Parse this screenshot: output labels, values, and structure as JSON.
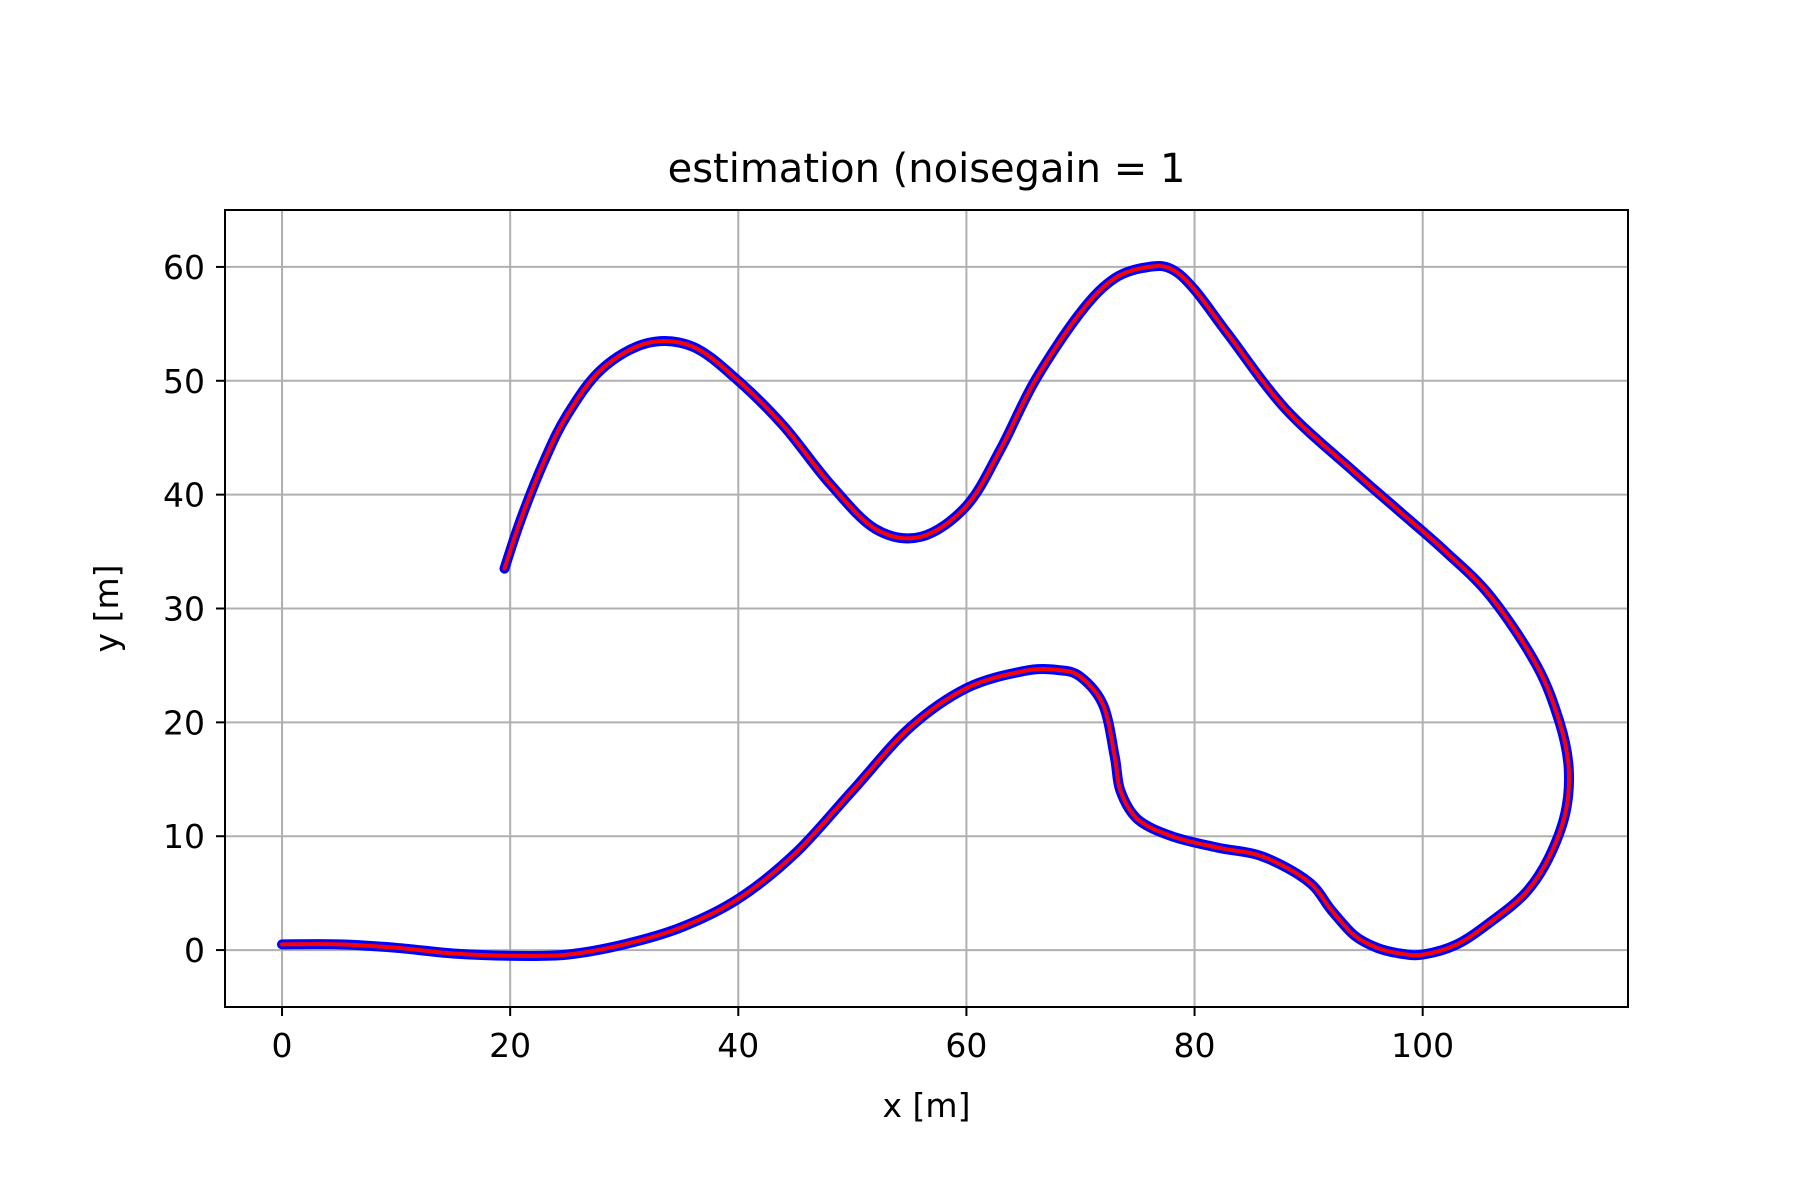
{
  "chart_data": {
    "type": "line",
    "title": "estimation (noisegain = 1",
    "xlabel": "x [m]",
    "ylabel": "y [m]",
    "xlim": [
      -5,
      118
    ],
    "ylim": [
      -5,
      65
    ],
    "xticks": [
      0,
      20,
      40,
      60,
      80,
      100
    ],
    "yticks": [
      0,
      10,
      20,
      30,
      40,
      50,
      60
    ],
    "xtick_labels": [
      "0",
      "20",
      "40",
      "60",
      "80",
      "100"
    ],
    "ytick_labels": [
      "0",
      "10",
      "20",
      "30",
      "40",
      "50",
      "60"
    ],
    "grid": true,
    "legend": "none",
    "series": [
      {
        "color": "#0000ff",
        "style": "noisy points",
        "x": [
          0,
          5,
          10,
          15,
          20,
          25,
          30,
          35,
          40,
          45,
          50,
          55,
          60,
          65,
          68,
          70,
          72,
          73,
          73.5,
          75,
          78,
          82,
          86,
          90,
          92,
          94,
          96,
          98,
          100,
          103,
          106,
          109,
          111,
          112.5,
          112.8,
          112,
          110,
          106,
          102,
          98,
          94,
          88,
          83,
          80,
          78,
          76,
          73,
          70,
          66,
          63,
          60,
          56,
          52,
          48,
          44,
          40,
          36,
          32,
          28,
          25,
          23,
          21,
          19.5
        ],
        "y": [
          0.5,
          0.5,
          0.2,
          -0.3,
          -0.5,
          -0.4,
          0.5,
          2,
          4.5,
          8.5,
          14,
          19.5,
          23,
          24.5,
          24.6,
          24,
          21.5,
          17,
          14,
          11.5,
          10,
          9,
          8.2,
          6,
          3.5,
          1.3,
          0.2,
          -0.3,
          -0.4,
          0.5,
          2.5,
          5,
          8,
          12,
          16,
          20,
          25,
          31,
          35,
          38.5,
          42,
          47.5,
          54,
          58,
          59.8,
          60,
          59,
          56,
          50,
          44,
          39,
          36.3,
          37,
          41,
          46,
          50,
          53,
          53.3,
          51,
          47,
          43,
          38,
          33.5
        ]
      },
      {
        "color": "#ff0000",
        "style": "line",
        "x": [
          0,
          5,
          10,
          15,
          20,
          25,
          30,
          35,
          40,
          45,
          50,
          55,
          60,
          65,
          68,
          70,
          72,
          73,
          73.5,
          75,
          78,
          82,
          86,
          90,
          92,
          94,
          96,
          98,
          100,
          103,
          106,
          109,
          111,
          112.5,
          112.8,
          112,
          110,
          106,
          102,
          98,
          94,
          88,
          83,
          80,
          78,
          76,
          73,
          70,
          66,
          63,
          60,
          56,
          52,
          48,
          44,
          40,
          36,
          32,
          28,
          25,
          23,
          21,
          19.5
        ],
        "y": [
          0.5,
          0.5,
          0.2,
          -0.3,
          -0.5,
          -0.4,
          0.5,
          2,
          4.5,
          8.5,
          14,
          19.5,
          23,
          24.5,
          24.6,
          24,
          21.5,
          17,
          14,
          11.5,
          10,
          9,
          8.2,
          6,
          3.5,
          1.3,
          0.2,
          -0.3,
          -0.4,
          0.5,
          2.5,
          5,
          8,
          12,
          16,
          20,
          25,
          31,
          35,
          38.5,
          42,
          47.5,
          54,
          58,
          59.8,
          60,
          59,
          56,
          50,
          44,
          39,
          36.3,
          37,
          41,
          46,
          50,
          53,
          53.3,
          51,
          47,
          43,
          38,
          33.5
        ]
      }
    ]
  }
}
